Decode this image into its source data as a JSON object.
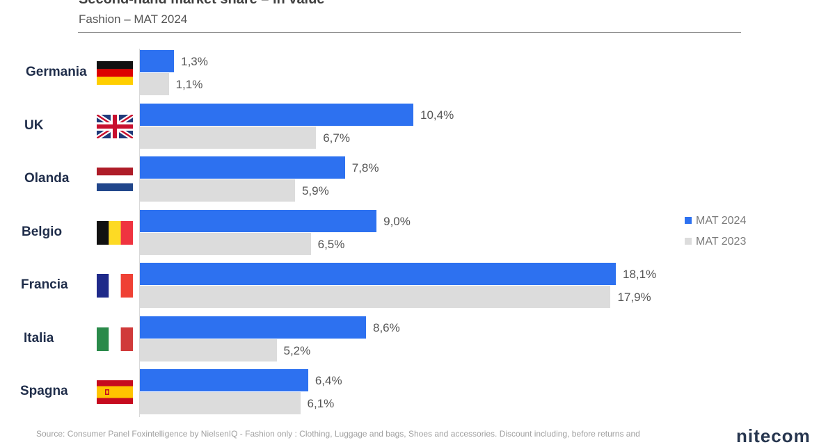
{
  "chart_data": {
    "type": "bar",
    "orientation": "horizontal",
    "title": "Second-hand market share – in value",
    "subtitle": "Fashion – MAT 2024",
    "categories": [
      "Germania",
      "UK",
      "Olanda",
      "Belgio",
      "Francia",
      "Italia",
      "Spagna"
    ],
    "series": [
      {
        "name": "MAT 2024",
        "color": "#2d71f0",
        "values": [
          1.3,
          10.4,
          7.8,
          9.0,
          18.1,
          8.6,
          6.4
        ],
        "labels": [
          "1,3%",
          "10,4%",
          "7,8%",
          "9,0%",
          "18,1%",
          "8,6%",
          "6,4%"
        ]
      },
      {
        "name": "MAT 2023",
        "color": "#dcdcdc",
        "values": [
          1.1,
          6.7,
          5.9,
          6.5,
          17.9,
          5.2,
          6.1
        ],
        "labels": [
          "1,1%",
          "6,7%",
          "5,9%",
          "6,5%",
          "17,9%",
          "5,2%",
          "6,1%"
        ]
      }
    ],
    "xlim": [
      0,
      18.1
    ],
    "legend": {
      "position": "right",
      "labels": [
        "MAT 2024",
        "MAT 2023"
      ]
    },
    "flags": [
      "flag-germany",
      "flag-uk",
      "flag-netherlands",
      "flag-belgium",
      "flag-france",
      "flag-italy",
      "flag-spain"
    ]
  },
  "footer": {
    "source": "Source: Consumer Panel Foxintelligence by NielsenIQ - Fashion only : Clothing, Luggage and bags, Shoes and accessories. Discount including, before returns and",
    "logo": "nitecom"
  }
}
